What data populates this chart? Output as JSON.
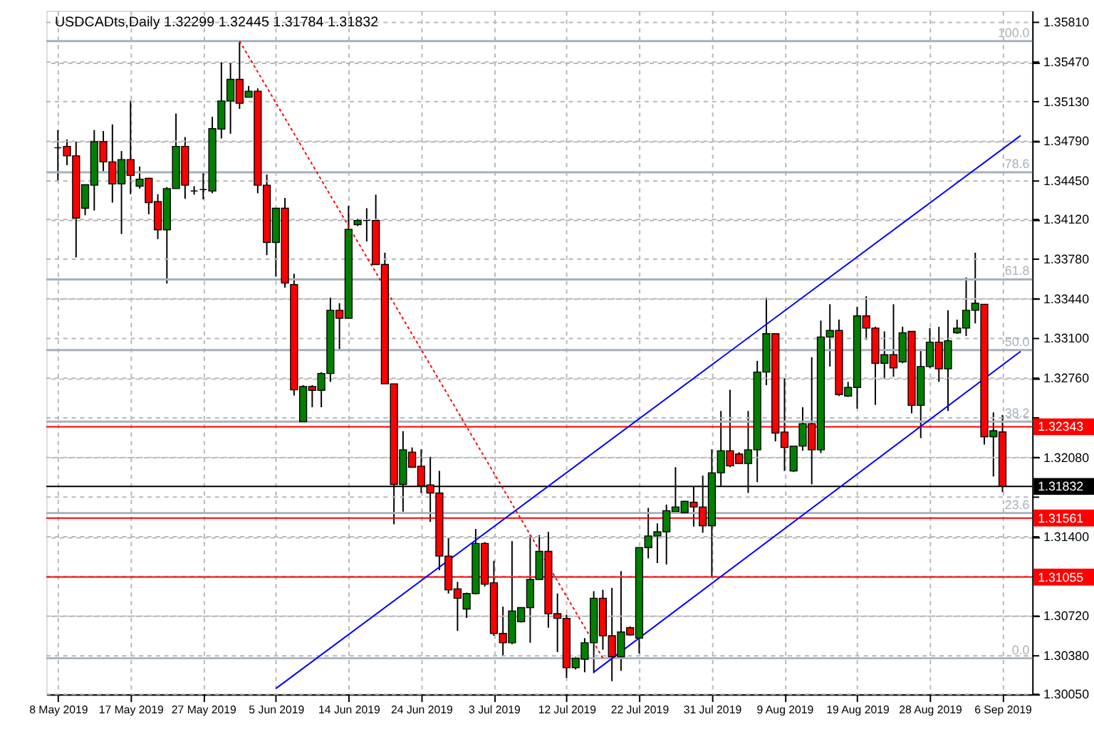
{
  "chart_data": {
    "type": "candlestick",
    "title": "USDCADts,Daily  1.32299 1.32445 1.31784 1.31832",
    "categories": [
      "8 May 2019",
      null,
      null,
      null,
      null,
      null,
      null,
      null,
      "17 May 2019",
      null,
      null,
      null,
      null,
      null,
      null,
      null,
      "27 May 2019",
      null,
      null,
      null,
      null,
      null,
      null,
      null,
      "5 Jun 2019",
      null,
      null,
      null,
      null,
      null,
      null,
      null,
      "14 Jun 2019",
      null,
      null,
      null,
      null,
      null,
      null,
      null,
      "24 Jun 2019",
      null,
      null,
      null,
      null,
      null,
      null,
      null,
      "3 Jul 2019",
      null,
      null,
      null,
      null,
      null,
      null,
      null,
      "12 Jul 2019",
      null,
      null,
      null,
      null,
      null,
      null,
      null,
      "22 Jul 2019",
      null,
      null,
      null,
      null,
      null,
      null,
      null,
      "31 Jul 2019",
      null,
      null,
      null,
      null,
      null,
      null,
      null,
      "9 Aug 2019",
      null,
      null,
      null,
      null,
      null,
      null,
      null,
      "19 Aug 2019",
      null,
      null,
      null,
      null,
      null,
      null,
      null,
      "28 Aug 2019",
      null,
      null,
      null,
      null,
      null,
      null,
      null,
      "6 Sep 2019",
      null,
      null
    ],
    "ohlc": [
      [
        1.34735,
        1.34887,
        1.34446,
        1.34735
      ],
      [
        1.34747,
        1.34807,
        1.34586,
        1.34666
      ],
      [
        1.34666,
        1.34787,
        1.33795,
        1.34133
      ],
      [
        1.34217,
        1.34418,
        1.34157,
        1.34418
      ],
      [
        1.34414,
        1.34887,
        1.34197,
        1.34787
      ],
      [
        1.34787,
        1.34879,
        1.34534,
        1.34614
      ],
      [
        1.34614,
        1.34935,
        1.34265,
        1.34426
      ],
      [
        1.34426,
        1.34707,
        1.33996,
        1.34634
      ],
      [
        1.34634,
        1.3514,
        1.34337,
        1.34498
      ],
      [
        1.34406,
        1.34574,
        1.34385,
        1.34466
      ],
      [
        1.34474,
        1.34478,
        1.34165,
        1.34265
      ],
      [
        1.34273,
        1.34337,
        1.33952,
        1.34032
      ],
      [
        1.34032,
        1.34398,
        1.33571,
        1.34385
      ],
      [
        1.34385,
        1.35028,
        1.34385,
        1.34747
      ],
      [
        1.34747,
        1.34827,
        1.34297,
        1.34414
      ],
      [
        1.34365,
        1.34406,
        1.34333,
        1.34365
      ],
      [
        1.34377,
        1.34526,
        1.34293,
        1.34377
      ],
      [
        1.34365,
        1.35,
        1.34345,
        1.34899
      ],
      [
        1.34895,
        1.35469,
        1.34815,
        1.35136
      ],
      [
        1.35136,
        1.35461,
        1.34855,
        1.35321
      ],
      [
        1.35321,
        1.3565,
        1.35068,
        1.35116
      ],
      [
        1.35168,
        1.35265,
        1.35168,
        1.3522
      ],
      [
        1.3522,
        1.35244,
        1.34345,
        1.34414
      ],
      [
        1.34414,
        1.34506,
        1.33815,
        1.33924
      ],
      [
        1.33924,
        1.34217,
        1.33631,
        1.34217
      ],
      [
        1.34217,
        1.34305,
        1.33535,
        1.33575
      ],
      [
        1.33563,
        1.33655,
        1.32611,
        1.3266
      ],
      [
        1.32387,
        1.327,
        1.32387,
        1.32688
      ],
      [
        1.32688,
        1.327,
        1.32511,
        1.32656
      ],
      [
        1.32656,
        1.32812,
        1.32511,
        1.328
      ],
      [
        1.328,
        1.3345,
        1.32728,
        1.33342
      ],
      [
        1.33342,
        1.33402,
        1.33001,
        1.33274
      ],
      [
        1.33274,
        1.34237,
        1.33274,
        1.34036
      ],
      [
        1.34076,
        1.34125,
        1.34064,
        1.34112
      ],
      [
        1.34112,
        1.34217,
        1.33932,
        1.34112
      ],
      [
        1.34112,
        1.34333,
        1.33735,
        1.33735
      ],
      [
        1.33735,
        1.33836,
        1.32712,
        1.32712
      ],
      [
        1.32712,
        1.32712,
        1.31507,
        1.31849
      ],
      [
        1.31849,
        1.32306,
        1.31616,
        1.32146
      ],
      [
        1.32126,
        1.32166,
        1.31997,
        1.31997
      ],
      [
        1.32005,
        1.3215,
        1.31776,
        1.31837
      ],
      [
        1.31845,
        1.32086,
        1.31528,
        1.31776
      ],
      [
        1.31776,
        1.31965,
        1.31114,
        1.31235
      ],
      [
        1.31235,
        1.31387,
        1.30914,
        1.30946
      ],
      [
        1.30954,
        1.31014,
        1.30593,
        1.30873
      ],
      [
        1.30781,
        1.30922,
        1.30705,
        1.30914
      ],
      [
        1.30914,
        1.31467,
        1.30906,
        1.31343
      ],
      [
        1.31343,
        1.31355,
        1.30974,
        1.30994
      ],
      [
        1.31006,
        1.31195,
        1.30552,
        1.30572
      ],
      [
        1.30572,
        1.30801,
        1.3038,
        1.30492
      ],
      [
        1.30492,
        1.31363,
        1.3048,
        1.30765
      ],
      [
        1.30673,
        1.30793,
        1.30665,
        1.30793
      ],
      [
        1.30793,
        1.31415,
        1.30492,
        1.31034
      ],
      [
        1.31034,
        1.31415,
        1.31034,
        1.31275
      ],
      [
        1.31275,
        1.31443,
        1.30621,
        1.30741
      ],
      [
        1.30741,
        1.30914,
        1.30412,
        1.30701
      ],
      [
        1.30701,
        1.30733,
        1.30191,
        1.30279
      ],
      [
        1.30279,
        1.30372,
        1.30263,
        1.30359
      ],
      [
        1.30351,
        1.30532,
        1.30239,
        1.30492
      ],
      [
        1.30492,
        1.30934,
        1.30231,
        1.30873
      ],
      [
        1.30873,
        1.30946,
        1.30432,
        1.30552
      ],
      [
        1.30552,
        1.30962,
        1.30163,
        1.30372
      ],
      [
        1.30372,
        1.31106,
        1.30251,
        1.30584
      ],
      [
        1.30621,
        1.30633,
        1.30552,
        1.3056
      ],
      [
        1.30532,
        1.31307,
        1.304,
        1.31307
      ],
      [
        1.31307,
        1.31648,
        1.31215,
        1.31407
      ],
      [
        1.31407,
        1.31515,
        1.31175,
        1.31443
      ],
      [
        1.31443,
        1.31676,
        1.31163,
        1.31624
      ],
      [
        1.31616,
        1.31997,
        1.31616,
        1.31656
      ],
      [
        1.31608,
        1.31708,
        1.31596,
        1.31704
      ],
      [
        1.31696,
        1.31829,
        1.31487,
        1.31656
      ],
      [
        1.31656,
        1.31925,
        1.31435,
        1.31495
      ],
      [
        1.31495,
        1.3215,
        1.31054,
        1.31949
      ],
      [
        1.31949,
        1.32479,
        1.31829,
        1.32138
      ],
      [
        1.32138,
        1.3266,
        1.31997,
        1.32009
      ],
      [
        1.3211,
        1.32126,
        1.32025,
        1.32029
      ],
      [
        1.32029,
        1.32479,
        1.31776,
        1.32146
      ],
      [
        1.32146,
        1.32908,
        1.31869,
        1.32812
      ],
      [
        1.32812,
        1.3345,
        1.327,
        1.33141
      ],
      [
        1.33141,
        1.33141,
        1.32218,
        1.3229
      ],
      [
        1.32298,
        1.3276,
        1.31965,
        1.32166
      ],
      [
        1.31965,
        1.32178,
        1.31957,
        1.32178
      ],
      [
        1.32178,
        1.32511,
        1.32138,
        1.3237
      ],
      [
        1.3237,
        1.3294,
        1.31849,
        1.32146
      ],
      [
        1.32146,
        1.33254,
        1.32118,
        1.33113
      ],
      [
        1.33113,
        1.33394,
        1.3286,
        1.33169
      ],
      [
        1.33169,
        1.33262,
        1.32607,
        1.32619
      ],
      [
        1.32607,
        1.32728,
        1.32599,
        1.3268
      ],
      [
        1.3268,
        1.3337,
        1.32499,
        1.33294
      ],
      [
        1.33294,
        1.33462,
        1.33089,
        1.33189
      ],
      [
        1.33189,
        1.33201,
        1.32531,
        1.32888
      ],
      [
        1.32888,
        1.33161,
        1.32752,
        1.32961
      ],
      [
        1.32961,
        1.33394,
        1.32772,
        1.32848
      ],
      [
        1.329,
        1.33201,
        1.32888,
        1.33149
      ],
      [
        1.33161,
        1.33161,
        1.32459,
        1.32527
      ],
      [
        1.32527,
        1.33009,
        1.32246,
        1.3286
      ],
      [
        1.3286,
        1.33189,
        1.32848,
        1.33069
      ],
      [
        1.33069,
        1.33201,
        1.32728,
        1.3284
      ],
      [
        1.3284,
        1.33342,
        1.32479,
        1.33081
      ],
      [
        1.33149,
        1.33262,
        1.33141,
        1.33189
      ],
      [
        1.33189,
        1.33623,
        1.33121,
        1.33342
      ],
      [
        1.33342,
        1.33836,
        1.33229,
        1.33402
      ],
      [
        1.33394,
        1.33394,
        1.3219,
        1.32258
      ],
      [
        1.32258,
        1.32467,
        1.31917,
        1.3231
      ],
      [
        1.32299,
        1.32445,
        1.31784,
        1.31832
      ],
      null,
      null
    ],
    "colors": [
      "#000000",
      "#ff0000",
      "#ff0000",
      "#008000",
      "#008000",
      "#ff0000",
      "#ff0000",
      "#008000",
      "#ff0000",
      "#008000",
      "#ff0000",
      "#ff0000",
      "#008000",
      "#008000",
      "#ff0000",
      "#000000",
      "#000000",
      "#008000",
      "#008000",
      "#008000",
      "#ff0000",
      "#008000",
      "#ff0000",
      "#ff0000",
      "#008000",
      "#ff0000",
      "#ff0000",
      "#008000",
      "#ff0000",
      "#008000",
      "#008000",
      "#ff0000",
      "#008000",
      "#008000",
      "#000000",
      "#ff0000",
      "#ff0000",
      "#ff0000",
      "#008000",
      "#ff0000",
      "#ff0000",
      "#ff0000",
      "#ff0000",
      "#ff0000",
      "#ff0000",
      "#008000",
      "#008000",
      "#ff0000",
      "#ff0000",
      "#ff0000",
      "#008000",
      "#008000",
      "#008000",
      "#008000",
      "#ff0000",
      "#ff0000",
      "#ff0000",
      "#008000",
      "#008000",
      "#008000",
      "#ff0000",
      "#ff0000",
      "#008000",
      "#ff0000",
      "#008000",
      "#008000",
      "#008000",
      "#008000",
      "#008000",
      "#008000",
      "#ff0000",
      "#ff0000",
      "#008000",
      "#008000",
      "#ff0000",
      "#ff0000",
      "#008000",
      "#008000",
      "#008000",
      "#ff0000",
      "#ff0000",
      "#008000",
      "#008000",
      "#ff0000",
      "#008000",
      "#008000",
      "#ff0000",
      "#008000",
      "#008000",
      "#ff0000",
      "#ff0000",
      "#008000",
      "#ff0000",
      "#008000",
      "#ff0000",
      "#008000",
      "#008000",
      "#ff0000",
      "#008000",
      "#008000",
      "#008000",
      "#008000",
      "#ff0000",
      "#008000",
      "#ff0000",
      null,
      null
    ],
    "series": [
      {
        "type": "line",
        "color": "#0000ff",
        "line_style": "solid",
        "values": [
          null,
          null,
          null,
          null,
          null,
          null,
          null,
          null,
          null,
          null,
          null,
          null,
          null,
          null,
          null,
          null,
          null,
          null,
          null,
          null,
          null,
          null,
          null,
          null,
          1.301,
          null,
          null,
          null,
          null,
          null,
          null,
          null,
          null,
          null,
          null,
          null,
          null,
          null,
          null,
          null,
          null,
          null,
          null,
          null,
          null,
          null,
          null,
          null,
          null,
          null,
          null,
          null,
          null,
          null,
          null,
          null,
          null,
          null,
          null,
          null,
          null,
          null,
          null,
          null,
          null,
          null,
          null,
          null,
          null,
          null,
          null,
          null,
          null,
          null,
          null,
          null,
          null,
          null,
          null,
          null,
          null,
          null,
          null,
          null,
          null,
          null,
          null,
          null,
          null,
          null,
          null,
          null,
          null,
          null,
          null,
          null,
          null,
          null,
          null,
          null,
          null,
          null,
          null,
          null,
          null,
          null,
          1.3484
        ]
      },
      {
        "type": "line",
        "color": "#0000ff",
        "line_style": "solid",
        "values": [
          null,
          null,
          null,
          null,
          null,
          null,
          null,
          null,
          null,
          null,
          null,
          null,
          null,
          null,
          null,
          null,
          null,
          null,
          null,
          null,
          null,
          null,
          null,
          null,
          null,
          null,
          null,
          null,
          null,
          null,
          null,
          null,
          null,
          null,
          null,
          null,
          null,
          null,
          null,
          null,
          null,
          null,
          null,
          null,
          null,
          null,
          null,
          null,
          null,
          null,
          null,
          null,
          null,
          null,
          null,
          null,
          null,
          null,
          null,
          1.3024,
          null,
          null,
          null,
          null,
          null,
          null,
          null,
          null,
          null,
          null,
          null,
          null,
          null,
          null,
          null,
          null,
          null,
          null,
          null,
          null,
          null,
          null,
          null,
          null,
          null,
          null,
          null,
          null,
          null,
          null,
          null,
          null,
          null,
          null,
          null,
          null,
          null,
          null,
          null,
          null,
          null,
          null,
          null,
          null,
          null,
          null,
          1.3299
        ]
      },
      {
        "type": "line",
        "color": "#ff0000",
        "line_style": "dotted",
        "values": [
          null,
          null,
          null,
          null,
          null,
          null,
          null,
          null,
          null,
          null,
          null,
          null,
          null,
          null,
          null,
          null,
          null,
          null,
          null,
          null,
          1.3565,
          null,
          null,
          null,
          null,
          null,
          null,
          null,
          null,
          null,
          null,
          null,
          null,
          null,
          null,
          null,
          null,
          null,
          null,
          null,
          null,
          null,
          null,
          null,
          null,
          null,
          null,
          null,
          null,
          null,
          null,
          null,
          null,
          null,
          null,
          null,
          null,
          null,
          null,
          null,
          1.3036,
          null,
          null,
          null,
          null,
          null,
          null,
          null,
          null,
          null,
          null,
          null,
          null,
          null,
          null,
          null,
          null,
          null,
          null,
          null,
          null,
          null,
          null,
          null,
          null,
          null,
          null,
          null,
          null,
          null,
          null,
          null,
          null,
          null,
          null,
          null,
          null,
          null,
          null,
          null,
          null,
          null,
          null,
          null,
          null,
          null,
          null
        ]
      }
    ],
    "ylim": [
      1.3005,
      1.3591
    ],
    "yticks": [
      {
        "value": 1.3005,
        "label": "1.30050"
      },
      {
        "value": 1.3038,
        "label": "1.30380"
      },
      {
        "value": 1.3072,
        "label": "1.30720"
      },
      {
        "value": 1.3106,
        "label": null
      },
      {
        "value": 1.314,
        "label": "1.31400"
      },
      {
        "value": 1.3174,
        "label": null
      },
      {
        "value": 1.3208,
        "label": "1.32080"
      },
      {
        "value": 1.3242,
        "label": null
      },
      {
        "value": 1.3276,
        "label": "1.32760"
      },
      {
        "value": 1.331,
        "label": "1.33100"
      },
      {
        "value": 1.3344,
        "label": "1.33440"
      },
      {
        "value": 1.3378,
        "label": "1.33780"
      },
      {
        "value": 1.3412,
        "label": "1.34120"
      },
      {
        "value": 1.3445,
        "label": "1.34450"
      },
      {
        "value": 1.3479,
        "label": "1.34790"
      },
      {
        "value": 1.3513,
        "label": "1.35130"
      },
      {
        "value": 1.3547,
        "label": "1.35470"
      },
      {
        "value": 1.3581,
        "label": "1.35810"
      }
    ],
    "ref_lines": [
      {
        "axis": "y",
        "value": 1.35649,
        "color": "#a7b1bb"
      },
      {
        "axis": "y",
        "value": 1.34525,
        "color": "#a7b1bb"
      },
      {
        "axis": "y",
        "value": 1.33607,
        "color": "#a7b1bb"
      },
      {
        "axis": "y",
        "value": 1.33001,
        "color": "#a7b1bb"
      },
      {
        "axis": "y",
        "value": 1.32387,
        "color": "#a7b1bb"
      },
      {
        "axis": "y",
        "value": 1.31604,
        "color": "#a7b1bb"
      },
      {
        "axis": "y",
        "value": 1.30359,
        "color": "#a7b1bb"
      },
      {
        "axis": "y",
        "value": 1.32343,
        "label": "1.32343",
        "color": "#ff0000"
      },
      {
        "axis": "y",
        "value": 1.31561,
        "label": "1.31561",
        "color": "#ff0000"
      },
      {
        "axis": "y",
        "value": 1.31055,
        "label": "1.31055",
        "color": "#ff0000"
      },
      {
        "axis": "y",
        "value": 1.31832,
        "label": "1.31832",
        "color": "#000000"
      }
    ],
    "annotations": [
      {
        "text": "100.0",
        "y": 1.35649
      },
      {
        "text": "78.6",
        "y": 1.34525
      },
      {
        "text": "61.8",
        "y": 1.33607
      },
      {
        "text": "50.0",
        "y": 1.33001
      },
      {
        "text": "38.2",
        "y": 1.32387
      },
      {
        "text": "23.6",
        "y": 1.31604
      },
      {
        "text": "0.0",
        "y": 1.30359
      }
    ],
    "grid": true
  }
}
